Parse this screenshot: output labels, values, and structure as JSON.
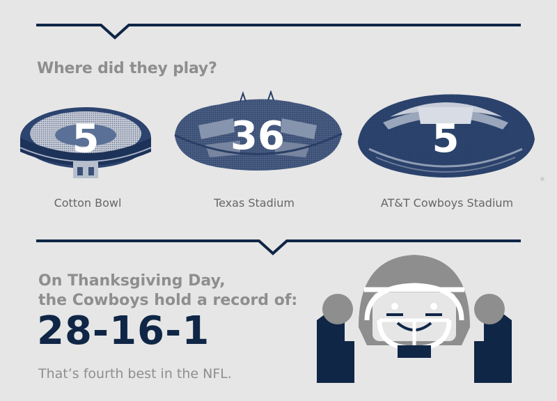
{
  "section1": {
    "title": "Where did they play?"
  },
  "stadiums": [
    {
      "name": "Cotton Bowl",
      "games": "5"
    },
    {
      "name": "Texas Stadium",
      "games": "36"
    },
    {
      "name": "AT&T Cowboys Stadium",
      "games": "5"
    }
  ],
  "section2": {
    "intro_line1": "On Thanksgiving Day,",
    "intro_line2": "the Cowboys hold a record of:",
    "record": "28-16-1",
    "footnote": "That’s fourth best in the NFL."
  },
  "colors": {
    "navy": "#0f2646",
    "gray_text": "#8e8e8e",
    "background": "#e6e6e6"
  },
  "icons": {
    "mascot": "football-player-icon"
  }
}
